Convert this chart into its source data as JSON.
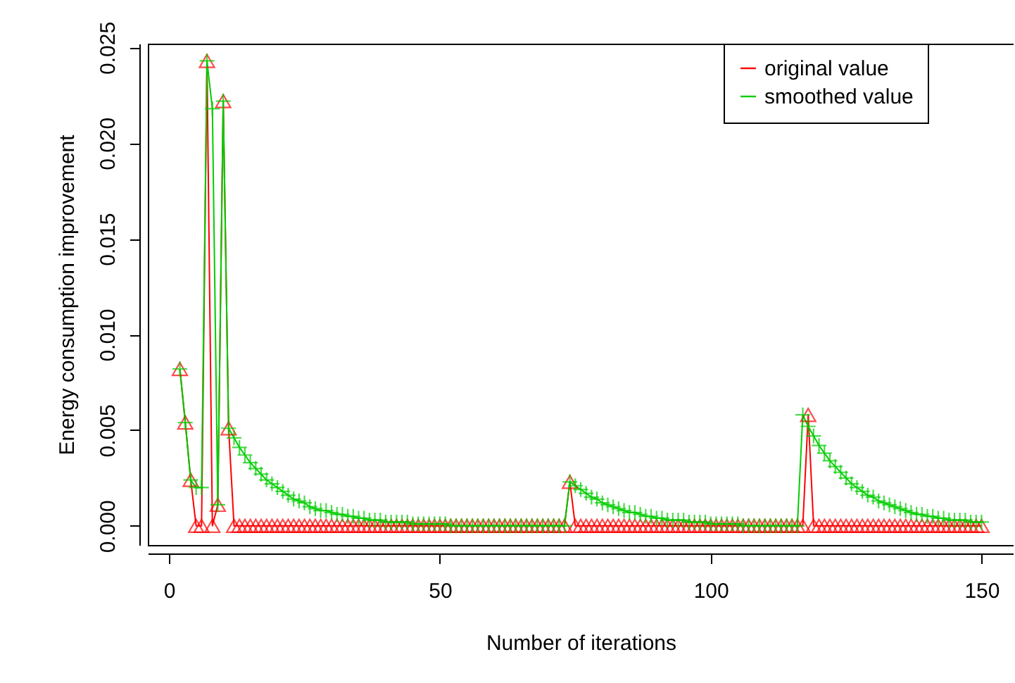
{
  "chart_data": {
    "type": "line",
    "xlabel": "Number of iterations",
    "ylabel": "Energy consumption improvement",
    "x": [
      2,
      3,
      4,
      5,
      6,
      7,
      8,
      9,
      10,
      11,
      12,
      13,
      14,
      15,
      16,
      17,
      18,
      19,
      20,
      21,
      22,
      23,
      24,
      25,
      26,
      27,
      28,
      29,
      30,
      31,
      32,
      33,
      34,
      35,
      36,
      37,
      38,
      39,
      40,
      41,
      42,
      43,
      44,
      45,
      46,
      47,
      48,
      49,
      50,
      51,
      52,
      53,
      54,
      55,
      56,
      57,
      58,
      59,
      60,
      61,
      62,
      63,
      64,
      65,
      66,
      67,
      68,
      69,
      70,
      71,
      72,
      73,
      74,
      75,
      76,
      77,
      78,
      79,
      80,
      81,
      82,
      83,
      84,
      85,
      86,
      87,
      88,
      89,
      90,
      91,
      92,
      93,
      94,
      95,
      96,
      97,
      98,
      99,
      100,
      101,
      102,
      103,
      104,
      105,
      106,
      107,
      108,
      109,
      110,
      111,
      112,
      113,
      114,
      115,
      116,
      117,
      118,
      119,
      120,
      121,
      122,
      123,
      124,
      125,
      126,
      127,
      128,
      129,
      130,
      131,
      132,
      133,
      134,
      135,
      136,
      137,
      138,
      139,
      140,
      141,
      142,
      143,
      144,
      145,
      146,
      147,
      148,
      149,
      150
    ],
    "series": [
      {
        "name": "original value",
        "color": "#ff0000",
        "marker": "triangle",
        "values": [
          0.0082,
          0.0054,
          0.0024,
          0,
          0,
          0.0243,
          0,
          0.0011,
          0.0222,
          0.0051,
          0,
          0,
          0,
          0,
          0,
          0,
          0,
          0,
          0,
          0,
          0,
          0,
          0,
          0,
          0,
          0,
          0,
          0,
          0,
          0,
          0,
          0,
          0,
          0,
          0,
          0,
          0,
          0,
          0,
          0,
          0,
          0,
          0,
          0,
          0,
          0,
          0,
          0,
          0,
          0,
          0,
          0,
          0,
          0,
          0,
          0,
          0,
          0,
          0,
          0,
          0,
          0,
          0,
          0,
          0,
          0,
          0,
          0,
          0,
          0,
          0,
          0,
          0.0023,
          0,
          0,
          0,
          0,
          0,
          0,
          0,
          0,
          0,
          0,
          0,
          0,
          0,
          0,
          0,
          0,
          0,
          0,
          0,
          0,
          0,
          0,
          0,
          0,
          0,
          0,
          0,
          0,
          0,
          0,
          0,
          0,
          0,
          0,
          0,
          0,
          0,
          0,
          0,
          0,
          0,
          0,
          0,
          0.0058,
          0,
          0,
          0,
          0,
          0,
          0,
          0,
          0,
          0,
          0,
          0,
          0,
          0,
          0,
          0,
          0,
          0,
          0,
          0,
          0,
          0,
          0,
          0,
          0,
          0,
          0,
          0,
          0,
          0,
          0,
          0,
          0
        ]
      },
      {
        "name": "smoothed value",
        "color": "#00cd00",
        "marker": "cross",
        "values": [
          0.0082,
          0.0054,
          0.0024,
          0.002,
          0.002,
          0.0243,
          0.0218,
          0.0011,
          0.0222,
          0.0051,
          0.0046,
          0.0041,
          0.0037,
          0.0033,
          0.003,
          0.0027,
          0.0024,
          0.0022,
          0.002,
          0.0018,
          0.0016,
          0.0014,
          0.0013,
          0.0012,
          0.001,
          0.0009,
          0.0008,
          0.0008,
          0.0007,
          0.0006,
          0.0006,
          0.0005,
          0.0005,
          0.0004,
          0.0004,
          0.0003,
          0.0003,
          0.0003,
          0.0002,
          0.0002,
          0.0002,
          0.0002,
          0.0002,
          0.0001,
          0.0001,
          0.0001,
          0.0001,
          0.0001,
          0.0001,
          0.0001,
          0,
          0,
          0,
          0,
          0,
          0,
          0,
          0,
          0,
          0,
          0,
          0,
          0,
          0,
          0,
          0,
          0,
          0,
          0,
          0,
          0,
          0,
          0.0023,
          0.0021,
          0.0019,
          0.0017,
          0.0015,
          0.0014,
          0.0012,
          0.0011,
          0.001,
          0.0009,
          0.0008,
          0.0007,
          0.0007,
          0.0006,
          0.0005,
          0.0005,
          0.0004,
          0.0004,
          0.0003,
          0.0003,
          0.0003,
          0.0003,
          0.0002,
          0.0002,
          0.0002,
          0.0002,
          0.0001,
          0.0001,
          0.0001,
          0.0001,
          0.0001,
          0.0001,
          0,
          0,
          0,
          0,
          0,
          0,
          0,
          0,
          0,
          0,
          0,
          0.0058,
          0.0052,
          0.0047,
          0.0042,
          0.0038,
          0.0034,
          0.0031,
          0.0028,
          0.0025,
          0.0022,
          0.002,
          0.0018,
          0.0016,
          0.0015,
          0.0013,
          0.0012,
          0.0011,
          0.001,
          0.0009,
          0.0008,
          0.0007,
          0.0006,
          0.0006,
          0.0005,
          0.0005,
          0.0004,
          0.0004,
          0.0003,
          0.0003,
          0.0003,
          0.0003,
          0.0002,
          0.0002,
          0.0002
        ]
      }
    ],
    "xlim": [
      -3.92,
      155.92
    ],
    "xticks": [
      0,
      50,
      100,
      150
    ],
    "ylim": [
      -0.001,
      0.0252
    ],
    "yticks": [
      {
        "value": 0,
        "label": "0.000"
      },
      {
        "value": 0.005,
        "label": "0.005"
      },
      {
        "value": 0.01,
        "label": "0.010"
      },
      {
        "value": 0.015,
        "label": "0.015"
      },
      {
        "value": 0.02,
        "label": "0.020"
      },
      {
        "value": 0.025,
        "label": "0.025"
      }
    ],
    "legend": "top right",
    "grid": false,
    "line_style": "solid"
  }
}
